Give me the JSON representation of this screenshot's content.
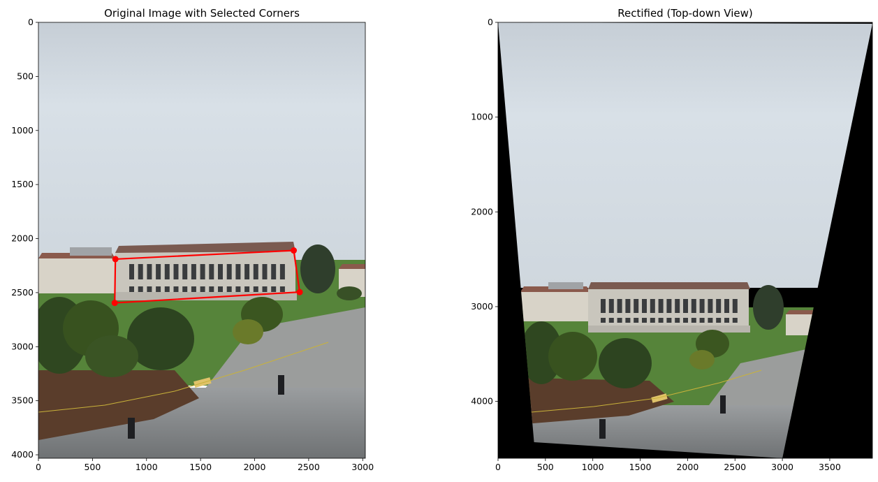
{
  "chart_data": [
    {
      "type": "image",
      "title": "Original Image with Selected Corners",
      "xlim": [
        0,
        3024
      ],
      "ylim": [
        4032,
        0
      ],
      "xticks": [
        0,
        500,
        1000,
        1500,
        2000,
        2500,
        3000
      ],
      "yticks": [
        0,
        500,
        1000,
        1500,
        2000,
        2500,
        3000,
        3500,
        4000
      ],
      "colors": {
        "sky": "#d2dbe2",
        "building": "#c8c6bf",
        "grass": "#4e7a32",
        "trees": "#2f4420",
        "pavement": "#8a8d8e",
        "corner_marker": "#ff0000"
      },
      "selected_corners": {
        "x": [
          712,
          2362,
          2417,
          706
        ],
        "y": [
          2190,
          2110,
          2495,
          2595
        ]
      }
    },
    {
      "type": "image",
      "title": "Rectified (Top-down View)",
      "xlim": [
        0,
        3950
      ],
      "ylim": [
        4600,
        0
      ],
      "xticks": [
        0,
        500,
        1000,
        1500,
        2000,
        2500,
        3000,
        3500
      ],
      "yticks": [
        0,
        1000,
        2000,
        3000,
        4000
      ],
      "colors": {
        "sky": "#d2dbe2",
        "building": "#c8c6bf",
        "grass": "#4e7a32",
        "trees": "#2f4420",
        "pavement": "#8a8d8e",
        "background": "#000000"
      },
      "valid_region": {
        "x": [
          0,
          3950,
          3000,
          380
        ],
        "y": [
          0,
          15,
          4600,
          4430
        ]
      }
    }
  ]
}
